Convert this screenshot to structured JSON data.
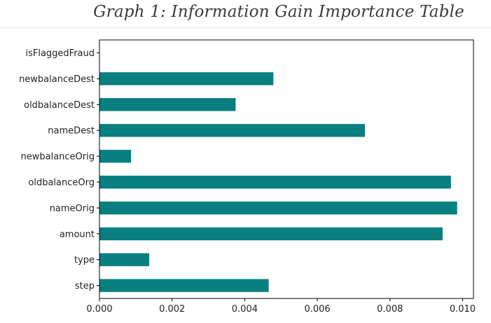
{
  "title": "Graph 1:  Information Gain Importance Table",
  "chart_data": {
    "type": "bar",
    "orientation": "horizontal",
    "title": "Graph 1:  Information Gain Importance Table",
    "categories": [
      "step",
      "type",
      "amount",
      "nameOrig",
      "oldbalanceOrg",
      "newbalanceOrig",
      "nameDest",
      "oldbalanceDest",
      "newbalanceDest",
      "isFlaggedFraud"
    ],
    "values": [
      0.00466,
      0.00137,
      0.00945,
      0.00985,
      0.00968,
      0.00087,
      0.00731,
      0.00375,
      0.00479,
      0.0
    ],
    "xlim": [
      0.0,
      0.0103
    ],
    "xticks": [
      "0.000",
      "0.002",
      "0.004",
      "0.006",
      "0.008",
      "0.010"
    ],
    "xtick_values": [
      0.0,
      0.002,
      0.004,
      0.006,
      0.008,
      0.01
    ],
    "xlabel": "",
    "ylabel": "",
    "bar_color": "#0a7f7f",
    "grid": false,
    "legend": "none"
  }
}
